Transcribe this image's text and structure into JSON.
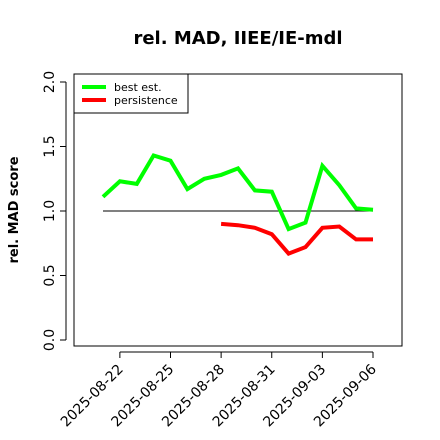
{
  "chart_data": {
    "type": "line",
    "title": "rel. MAD, IIEE/IE-mdl",
    "xlabel": "",
    "ylabel": "rel. MAD score",
    "x": [
      "2025-08-21",
      "2025-08-22",
      "2025-08-23",
      "2025-08-24",
      "2025-08-25",
      "2025-08-26",
      "2025-08-27",
      "2025-08-28",
      "2025-08-29",
      "2025-08-30",
      "2025-08-31",
      "2025-09-01",
      "2025-09-02",
      "2025-09-03",
      "2025-09-04",
      "2025-09-05",
      "2025-09-06"
    ],
    "xticks": [
      "2025-08-22",
      "2025-08-25",
      "2025-08-28",
      "2025-08-31",
      "2025-09-03",
      "2025-09-06"
    ],
    "yticks": [
      "0.0",
      "0.5",
      "1.0",
      "1.5",
      "2.0"
    ],
    "ylim": [
      0,
      2.0
    ],
    "reference_line": 1.0,
    "series": [
      {
        "name": "best est.",
        "color": "#00ff00",
        "values": [
          1.11,
          1.23,
          1.21,
          1.43,
          1.39,
          1.17,
          1.25,
          1.28,
          1.33,
          1.16,
          1.15,
          0.86,
          0.91,
          1.35,
          1.2,
          1.02,
          1.01
        ]
      },
      {
        "name": "persistence",
        "color": "#ff0000",
        "values": [
          null,
          null,
          null,
          null,
          null,
          null,
          null,
          0.9,
          0.89,
          0.87,
          0.82,
          0.67,
          0.72,
          0.87,
          0.88,
          0.78,
          0.78
        ]
      }
    ],
    "legend_position": "top-left",
    "grid": false
  }
}
